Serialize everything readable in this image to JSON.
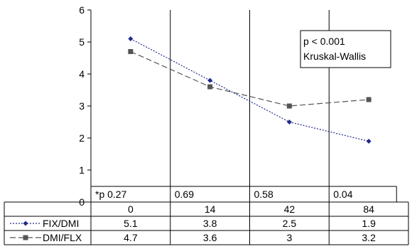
{
  "chart_data": {
    "type": "line",
    "categories": [
      "0",
      "14",
      "42",
      "84"
    ],
    "ylim": [
      0,
      6
    ],
    "yticks": [
      "0",
      "1",
      "2",
      "3",
      "4",
      "5",
      "6"
    ],
    "grid": "vertical lines between categories",
    "annotation": [
      "p < 0.001",
      "Kruskal-Wallis"
    ],
    "pvalues": [
      "*p 0.27",
      "0.69",
      "0.58",
      "0.04"
    ],
    "series": [
      {
        "name": "FIX/DMI",
        "values": [
          5.1,
          3.8,
          2.5,
          1.9
        ],
        "labels": [
          "5.1",
          "3.8",
          "2.5",
          "1.9"
        ],
        "color": "#1f2a8c",
        "dash": "2,2",
        "marker": "diamond"
      },
      {
        "name": "DMI/FLX",
        "values": [
          4.7,
          3.6,
          3.0,
          3.2
        ],
        "labels": [
          "4.7",
          "3.6",
          "3",
          "3.2"
        ],
        "color": "#555555",
        "dash": "8,4",
        "marker": "square"
      }
    ]
  }
}
